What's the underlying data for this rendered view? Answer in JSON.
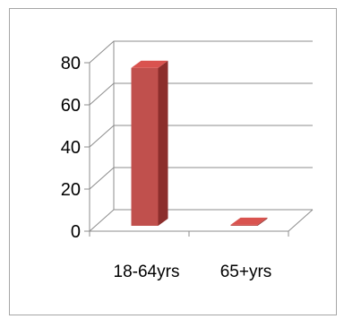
{
  "chart_data": {
    "type": "bar",
    "style": "3d-column",
    "categories": [
      "18-64yrs",
      "65+yrs"
    ],
    "values": [
      75,
      0.5
    ],
    "ylim": [
      0,
      80
    ],
    "yticks": [
      "0",
      "20",
      "40",
      "60",
      "80"
    ],
    "grid": true,
    "legend": "none",
    "colors": {
      "bar_front": "#c0504d",
      "bar_side": "#8c2e2c",
      "bar_top": "#d9534f",
      "gridline": "#8c8c8c",
      "frame": "#a6a6a6"
    }
  }
}
